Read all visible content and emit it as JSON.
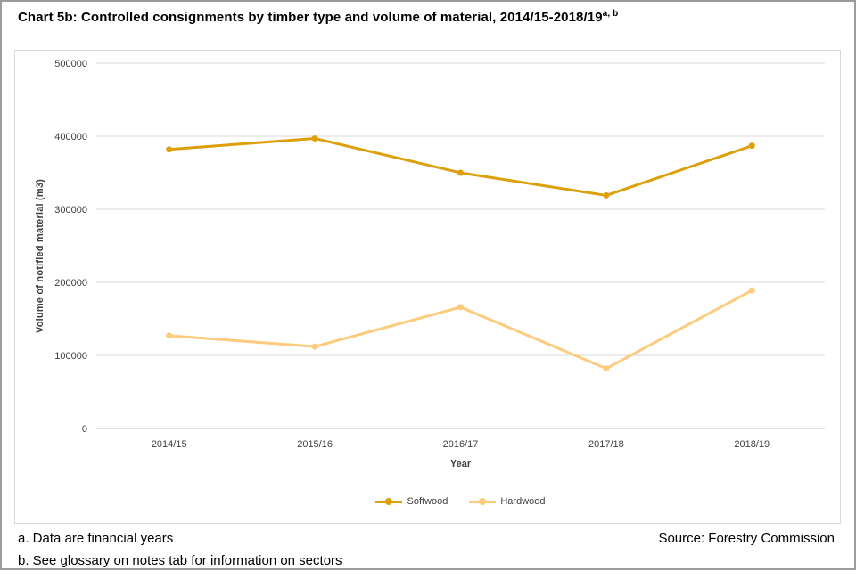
{
  "page": {
    "title": "Chart 5b: Controlled consignments by timber type and volume of material, 2014/15-2018/19",
    "title_superscript": "a, b"
  },
  "chart_data": {
    "type": "line",
    "title": "Chart 5b: Controlled consignments by timber type and volume of material, 2014/15-2018/19",
    "categories": [
      "2014/15",
      "2015/16",
      "2016/17",
      "2017/18",
      "2018/19"
    ],
    "series": [
      {
        "name": "Softwood",
        "color": "#DDA00A",
        "values": [
          382000,
          397000,
          350000,
          319000,
          387000
        ]
      },
      {
        "name": "Hardwood",
        "color": "#FCCB7D",
        "values": [
          127000,
          112000,
          166000,
          82000,
          189000
        ]
      }
    ],
    "xlabel": "Year",
    "ylabel": "Volume of notified material (m3)",
    "ylim": [
      0,
      500000
    ],
    "yticks": [
      0,
      100000,
      200000,
      300000,
      400000,
      500000
    ],
    "grid": true,
    "gridline_color": "#d9d9d9",
    "axis_line_color": "#bfbfbf",
    "tick_label_color": "#404040",
    "legend_position": "bottom"
  },
  "footnotes": {
    "note_a": "a. Data are financial years",
    "note_b": "b. See glossary on notes tab for information on sectors",
    "source": "Source: Forestry Commission"
  }
}
